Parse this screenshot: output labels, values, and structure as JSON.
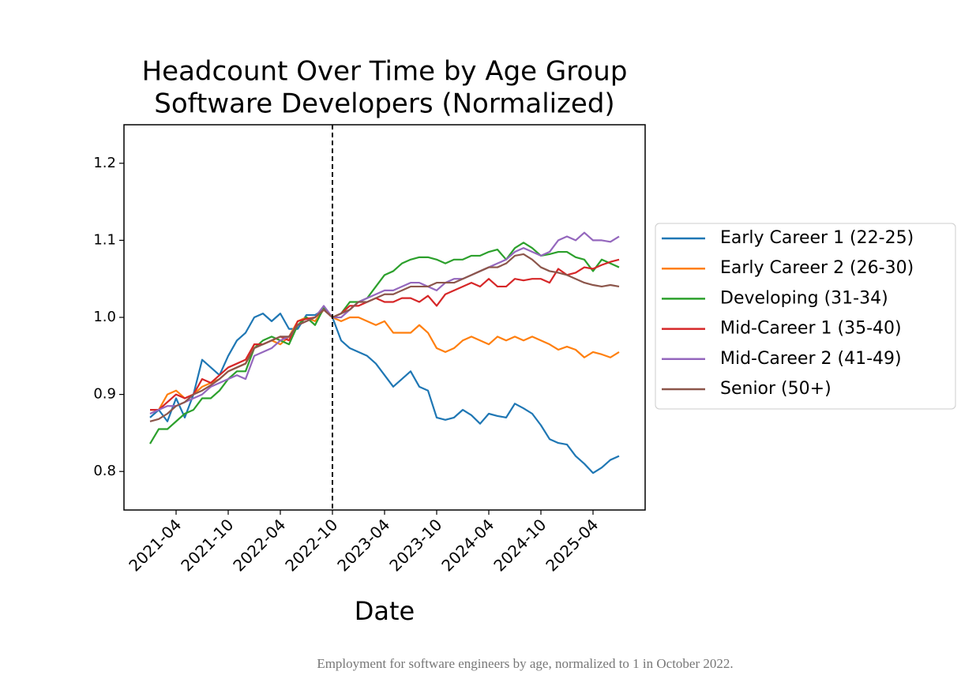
{
  "chart_data": {
    "type": "line",
    "title": "Headcount Over Time by Age Group",
    "subtitle": "Software Developers (Normalized)",
    "x_label": "Date",
    "caption": "Employment for software engineers by age, normalized to 1 in October 2022.",
    "x": [
      "2021-01",
      "2021-02",
      "2021-03",
      "2021-04",
      "2021-05",
      "2021-06",
      "2021-07",
      "2021-08",
      "2021-09",
      "2021-10",
      "2021-11",
      "2021-12",
      "2022-01",
      "2022-02",
      "2022-03",
      "2022-04",
      "2022-05",
      "2022-06",
      "2022-07",
      "2022-08",
      "2022-09",
      "2022-10",
      "2022-11",
      "2022-12",
      "2023-01",
      "2023-02",
      "2023-03",
      "2023-04",
      "2023-05",
      "2023-06",
      "2023-07",
      "2023-08",
      "2023-09",
      "2023-10",
      "2023-11",
      "2023-12",
      "2024-01",
      "2024-02",
      "2024-03",
      "2024-04",
      "2024-05",
      "2024-06",
      "2024-07",
      "2024-08",
      "2024-09",
      "2024-10",
      "2024-11",
      "2024-12",
      "2025-01",
      "2025-02",
      "2025-03",
      "2025-04",
      "2025-05",
      "2025-06",
      "2025-07"
    ],
    "xlim": [
      "2020-10",
      "2025-10"
    ],
    "xticks": [
      "2021-04",
      "2021-10",
      "2022-04",
      "2022-10",
      "2023-04",
      "2023-10",
      "2024-04",
      "2024-10",
      "2025-04"
    ],
    "ylim": [
      0.75,
      1.25
    ],
    "yticks": [
      0.8,
      0.9,
      {
        "value": 1,
        "label": "1.0"
      },
      1.1,
      1.2
    ],
    "vline": "2022-10",
    "grid": false,
    "legend": "outside right",
    "series": [
      {
        "name": "Early Career 1 (22-25)",
        "color": "#1f77b4",
        "values": [
          0.87,
          0.88,
          0.865,
          0.895,
          0.87,
          0.9,
          0.945,
          0.935,
          0.925,
          0.95,
          0.97,
          0.98,
          1.0,
          1.005,
          0.995,
          1.005,
          0.985,
          0.985,
          1.003,
          1.003,
          1.01,
          1.0,
          0.97,
          0.96,
          0.955,
          0.95,
          0.94,
          0.925,
          0.91,
          0.92,
          0.93,
          0.91,
          0.905,
          0.87,
          0.867,
          0.87,
          0.88,
          0.873,
          0.862,
          0.875,
          0.872,
          0.87,
          0.888,
          0.882,
          0.875,
          0.86,
          0.842,
          0.837,
          0.835,
          0.82,
          0.81,
          0.798,
          0.805,
          0.815,
          0.82
        ]
      },
      {
        "name": "Early Career 2 (26-30)",
        "color": "#ff7f0e",
        "values": [
          0.88,
          0.88,
          0.9,
          0.905,
          0.895,
          0.9,
          0.91,
          0.915,
          0.92,
          0.93,
          0.935,
          0.94,
          0.965,
          0.965,
          0.97,
          0.965,
          0.975,
          0.995,
          1.0,
          0.995,
          1.01,
          1.0,
          0.995,
          1.0,
          1.0,
          0.995,
          0.99,
          0.995,
          0.98,
          0.98,
          0.98,
          0.99,
          0.98,
          0.96,
          0.955,
          0.96,
          0.97,
          0.975,
          0.97,
          0.965,
          0.975,
          0.97,
          0.975,
          0.97,
          0.975,
          0.97,
          0.965,
          0.958,
          0.962,
          0.958,
          0.948,
          0.955,
          0.952,
          0.948,
          0.955
        ]
      },
      {
        "name": "Developing (31-34)",
        "color": "#2ca02c",
        "values": [
          0.836,
          0.855,
          0.855,
          0.865,
          0.875,
          0.88,
          0.895,
          0.895,
          0.905,
          0.92,
          0.93,
          0.93,
          0.96,
          0.97,
          0.975,
          0.97,
          0.965,
          0.99,
          1.0,
          0.99,
          1.012,
          1.0,
          1.005,
          1.02,
          1.02,
          1.025,
          1.04,
          1.055,
          1.06,
          1.07,
          1.075,
          1.078,
          1.078,
          1.075,
          1.07,
          1.075,
          1.075,
          1.08,
          1.08,
          1.085,
          1.088,
          1.075,
          1.09,
          1.097,
          1.09,
          1.08,
          1.082,
          1.085,
          1.085,
          1.078,
          1.075,
          1.06,
          1.075,
          1.07,
          1.065
        ]
      },
      {
        "name": "Mid-Career 1 (35-40)",
        "color": "#d62728",
        "values": [
          0.88,
          0.88,
          0.89,
          0.9,
          0.895,
          0.9,
          0.92,
          0.915,
          0.925,
          0.935,
          0.94,
          0.945,
          0.965,
          0.965,
          0.97,
          0.975,
          0.97,
          0.995,
          0.998,
          1.0,
          1.01,
          1.0,
          1.005,
          1.015,
          1.015,
          1.02,
          1.025,
          1.02,
          1.02,
          1.025,
          1.025,
          1.02,
          1.028,
          1.015,
          1.03,
          1.035,
          1.04,
          1.045,
          1.04,
          1.05,
          1.04,
          1.04,
          1.05,
          1.048,
          1.05,
          1.05,
          1.045,
          1.063,
          1.055,
          1.058,
          1.065,
          1.063,
          1.068,
          1.072,
          1.075
        ]
      },
      {
        "name": "Mid-Career 2 (41-49)",
        "color": "#9467bd",
        "values": [
          0.875,
          0.88,
          0.885,
          0.885,
          0.89,
          0.895,
          0.9,
          0.91,
          0.915,
          0.92,
          0.925,
          0.92,
          0.95,
          0.955,
          0.96,
          0.97,
          0.975,
          0.99,
          0.995,
          1.0,
          1.015,
          1.0,
          1.0,
          1.01,
          1.02,
          1.025,
          1.03,
          1.035,
          1.035,
          1.04,
          1.045,
          1.045,
          1.04,
          1.035,
          1.045,
          1.05,
          1.05,
          1.055,
          1.06,
          1.065,
          1.07,
          1.075,
          1.085,
          1.09,
          1.085,
          1.08,
          1.085,
          1.1,
          1.105,
          1.1,
          1.11,
          1.1,
          1.1,
          1.098,
          1.105
        ]
      },
      {
        "name": "Senior (50+)",
        "color": "#8c564b",
        "values": [
          0.865,
          0.868,
          0.875,
          0.885,
          0.89,
          0.9,
          0.905,
          0.912,
          0.92,
          0.93,
          0.935,
          0.94,
          0.96,
          0.965,
          0.97,
          0.975,
          0.975,
          0.99,
          0.995,
          1.0,
          1.01,
          1.0,
          1.005,
          1.01,
          1.02,
          1.02,
          1.025,
          1.03,
          1.03,
          1.035,
          1.04,
          1.04,
          1.04,
          1.045,
          1.045,
          1.045,
          1.05,
          1.055,
          1.06,
          1.065,
          1.065,
          1.07,
          1.08,
          1.082,
          1.075,
          1.065,
          1.06,
          1.058,
          1.055,
          1.05,
          1.045,
          1.042,
          1.04,
          1.042,
          1.04
        ]
      }
    ]
  }
}
